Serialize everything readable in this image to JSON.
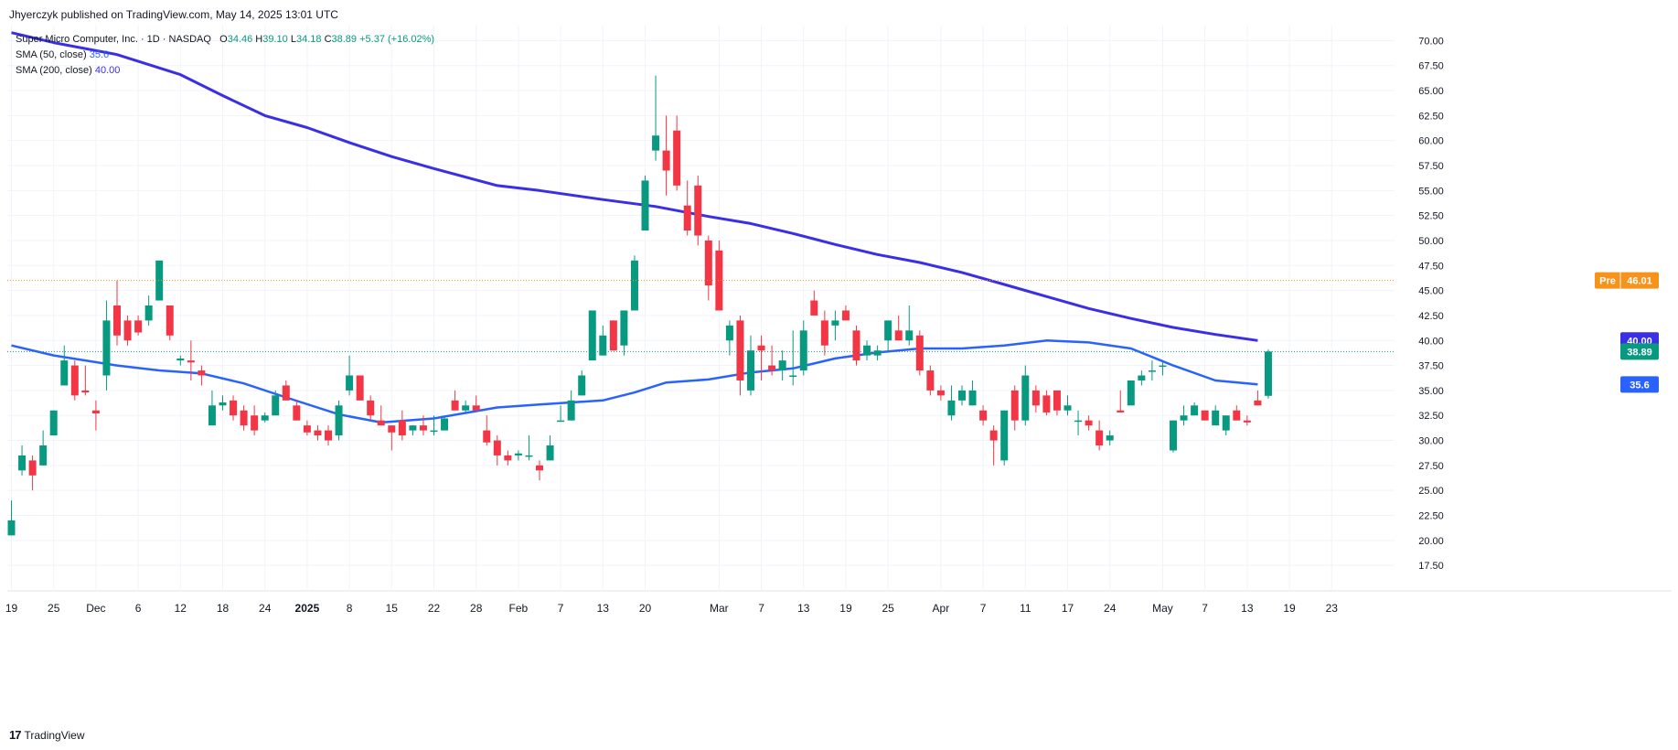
{
  "publisher_line": "Jhyerczyk published on TradingView.com, May 14, 2025 13:01 UTC",
  "legend": {
    "symbol": "Super Micro Computer, Inc. · 1D · NASDAQ",
    "o_label": "O",
    "o_value": "34.46",
    "h_label": "H",
    "h_value": "39.10",
    "l_label": "L",
    "l_value": "34.18",
    "c_label": "C",
    "c_value": "38.89",
    "change": "+5.37 (+16.02%)",
    "sma50_label": "SMA (50, close)",
    "sma50_value": "35.6",
    "sma200_label": "SMA (200, close)",
    "sma200_value": "40.00"
  },
  "branding": {
    "mark": "17",
    "name": "TradingView"
  },
  "colors": {
    "up": "#089981",
    "down": "#f23645",
    "sma50": "#2962ff",
    "sma200": "#3a2ee6",
    "pre": "#f7931a",
    "grid": "#f0f3fa"
  },
  "chart_data": {
    "type": "candlestick",
    "y_axis": {
      "min": 15.5,
      "max": 71.5,
      "side": "right",
      "ticks": [
        "17.50",
        "20.00",
        "22.50",
        "25.00",
        "27.50",
        "30.00",
        "32.50",
        "35.00",
        "37.50",
        "40.00",
        "42.50",
        "45.00",
        "47.50",
        "50.00",
        "52.50",
        "55.00",
        "57.50",
        "60.00",
        "62.50",
        "65.00",
        "67.50",
        "70.00"
      ]
    },
    "x_axis": {
      "ticks": [
        {
          "label": "19",
          "i": 0
        },
        {
          "label": "25",
          "i": 4
        },
        {
          "label": "Dec",
          "i": 8
        },
        {
          "label": "6",
          "i": 12
        },
        {
          "label": "12",
          "i": 16
        },
        {
          "label": "18",
          "i": 20
        },
        {
          "label": "24",
          "i": 24
        },
        {
          "label": "2025",
          "i": 28
        },
        {
          "label": "8",
          "i": 32
        },
        {
          "label": "15",
          "i": 36
        },
        {
          "label": "22",
          "i": 40
        },
        {
          "label": "28",
          "i": 44
        },
        {
          "label": "Feb",
          "i": 48
        },
        {
          "label": "7",
          "i": 52
        },
        {
          "label": "13",
          "i": 56
        },
        {
          "label": "20",
          "i": 60
        },
        {
          "label": "Mar",
          "i": 67
        },
        {
          "label": "7",
          "i": 71
        },
        {
          "label": "13",
          "i": 75
        },
        {
          "label": "19",
          "i": 79
        },
        {
          "label": "25",
          "i": 83
        },
        {
          "label": "Apr",
          "i": 88
        },
        {
          "label": "7",
          "i": 92
        },
        {
          "label": "11",
          "i": 96
        },
        {
          "label": "17",
          "i": 100
        },
        {
          "label": "24",
          "i": 104
        },
        {
          "label": "May",
          "i": 109
        },
        {
          "label": "7",
          "i": 113
        },
        {
          "label": "13",
          "i": 117
        },
        {
          "label": "19",
          "i": 121
        },
        {
          "label": "23",
          "i": 125
        }
      ]
    },
    "candles": [
      [
        20.5,
        24.0,
        20.5,
        22.0
      ],
      [
        27.0,
        29.5,
        26.5,
        28.5
      ],
      [
        28.0,
        28.5,
        25.0,
        26.5
      ],
      [
        27.5,
        31.0,
        27.5,
        29.5
      ],
      [
        30.5,
        33.0,
        30.5,
        33.0
      ],
      [
        35.5,
        39.5,
        35.5,
        38.0
      ],
      [
        37.5,
        38.0,
        34.0,
        34.5
      ],
      [
        35.0,
        37.5,
        34.5,
        34.8
      ],
      [
        33.0,
        34.0,
        31.0,
        32.7
      ],
      [
        36.5,
        44.0,
        35.0,
        42.0
      ],
      [
        43.5,
        46.0,
        39.5,
        40.5
      ],
      [
        42.0,
        42.5,
        39.5,
        40.0
      ],
      [
        42.0,
        42.5,
        40.5,
        40.8
      ],
      [
        42.0,
        44.5,
        41.5,
        43.5
      ],
      [
        44.0,
        48.0,
        44.0,
        48.0
      ],
      [
        43.5,
        43.5,
        40.0,
        40.5
      ],
      [
        38.0,
        38.5,
        37.5,
        38.2
      ],
      [
        38.0,
        40.0,
        36.0,
        37.8
      ],
      [
        37.0,
        37.5,
        35.5,
        36.5
      ],
      [
        31.5,
        35.0,
        31.5,
        33.5
      ],
      [
        33.5,
        34.5,
        33.0,
        33.8
      ],
      [
        34.0,
        34.5,
        32.0,
        32.5
      ],
      [
        33.0,
        33.5,
        31.0,
        31.5
      ],
      [
        32.5,
        33.5,
        30.5,
        31.0
      ],
      [
        32.0,
        32.8,
        31.8,
        32.5
      ],
      [
        32.5,
        35.0,
        32.5,
        34.5
      ],
      [
        35.5,
        36.0,
        34.0,
        34.0
      ],
      [
        33.5,
        34.0,
        32.0,
        32.0
      ],
      [
        31.5,
        32.0,
        30.5,
        30.8
      ],
      [
        31.0,
        31.5,
        30.0,
        30.5
      ],
      [
        31.0,
        31.5,
        29.5,
        30.0
      ],
      [
        30.5,
        34.0,
        30.0,
        33.5
      ],
      [
        35.0,
        38.5,
        34.5,
        36.5
      ],
      [
        36.5,
        36.5,
        34.0,
        34.0
      ],
      [
        34.0,
        34.5,
        32.0,
        32.5
      ],
      [
        32.0,
        33.5,
        31.5,
        31.5
      ],
      [
        31.5,
        31.5,
        29.0,
        30.8
      ],
      [
        32.0,
        33.0,
        30.0,
        30.5
      ],
      [
        31.0,
        31.5,
        30.5,
        31.5
      ],
      [
        31.5,
        32.5,
        30.5,
        31.0
      ],
      [
        31.0,
        32.5,
        30.5,
        31.0
      ],
      [
        31.0,
        32.5,
        31.0,
        32.2
      ],
      [
        34.0,
        35.0,
        33.0,
        33.0
      ],
      [
        33.0,
        34.0,
        32.8,
        33.5
      ],
      [
        33.5,
        34.5,
        33.5,
        33.0
      ],
      [
        31.0,
        32.5,
        29.5,
        29.8
      ],
      [
        30.0,
        30.5,
        27.5,
        28.5
      ],
      [
        28.5,
        29.0,
        27.5,
        28.0
      ],
      [
        28.5,
        29.0,
        28.0,
        28.7
      ],
      [
        28.5,
        30.5,
        28.0,
        28.5
      ],
      [
        27.5,
        28.0,
        26.0,
        27.0
      ],
      [
        28.0,
        30.5,
        28.0,
        29.5
      ],
      [
        32.0,
        33.5,
        32.0,
        32.0
      ],
      [
        32.0,
        35.0,
        32.0,
        34.0
      ],
      [
        34.5,
        37.0,
        34.5,
        36.5
      ],
      [
        38.0,
        43.0,
        38.0,
        43.0
      ],
      [
        38.5,
        41.5,
        38.5,
        40.5
      ],
      [
        42.0,
        42.0,
        39.0,
        39.0
      ],
      [
        39.5,
        43.0,
        38.5,
        43.0
      ],
      [
        43.0,
        48.5,
        43.0,
        48.0
      ],
      [
        51.0,
        56.5,
        51.0,
        56.0
      ],
      [
        59.0,
        66.5,
        58.0,
        60.5
      ],
      [
        59.0,
        62.5,
        54.5,
        57.0
      ],
      [
        61.0,
        62.5,
        55.0,
        55.5
      ],
      [
        53.5,
        56.0,
        50.5,
        51.0
      ],
      [
        55.5,
        56.5,
        49.5,
        50.5
      ],
      [
        50.0,
        50.5,
        44.0,
        45.5
      ],
      [
        49.0,
        50.0,
        43.0,
        43.0
      ],
      [
        40.0,
        42.0,
        38.5,
        41.5
      ],
      [
        42.0,
        42.5,
        34.5,
        36.0
      ],
      [
        35.0,
        40.5,
        34.5,
        39.0
      ],
      [
        39.5,
        40.5,
        36.0,
        39.0
      ],
      [
        37.5,
        39.5,
        36.5,
        37.0
      ],
      [
        37.0,
        39.0,
        36.0,
        38.0
      ],
      [
        36.5,
        41.0,
        35.5,
        36.5
      ],
      [
        37.0,
        42.0,
        36.5,
        41.0
      ],
      [
        44.0,
        45.0,
        42.5,
        42.5
      ],
      [
        42.0,
        43.0,
        38.5,
        39.5
      ],
      [
        41.5,
        43.0,
        40.0,
        42.0
      ],
      [
        43.0,
        43.5,
        42.0,
        42.0
      ],
      [
        41.0,
        41.5,
        37.5,
        38.0
      ],
      [
        38.5,
        40.0,
        38.0,
        39.5
      ],
      [
        38.5,
        39.5,
        38.0,
        39.0
      ],
      [
        40.0,
        42.0,
        39.0,
        42.0
      ],
      [
        41.0,
        42.5,
        40.0,
        40.0
      ],
      [
        40.0,
        43.5,
        39.5,
        41.0
      ],
      [
        40.5,
        41.0,
        36.5,
        37.0
      ],
      [
        37.0,
        37.5,
        34.5,
        35.0
      ],
      [
        35.0,
        35.5,
        34.0,
        34.5
      ],
      [
        32.5,
        35.5,
        32.0,
        34.0
      ],
      [
        34.0,
        35.5,
        33.5,
        35.0
      ],
      [
        33.5,
        36.0,
        33.5,
        35.0
      ],
      [
        33.0,
        33.5,
        31.5,
        32.0
      ],
      [
        31.0,
        31.5,
        27.5,
        30.0
      ],
      [
        28.0,
        33.0,
        27.5,
        33.0
      ],
      [
        35.0,
        35.5,
        31.0,
        32.0
      ],
      [
        32.0,
        37.5,
        31.5,
        36.5
      ],
      [
        35.0,
        35.5,
        32.8,
        33.5
      ],
      [
        34.5,
        35.0,
        32.5,
        32.8
      ],
      [
        35.0,
        35.0,
        32.5,
        33.0
      ],
      [
        33.0,
        34.5,
        32.5,
        33.5
      ],
      [
        32.0,
        33.0,
        30.5,
        32.0
      ],
      [
        32.0,
        32.5,
        31.0,
        31.5
      ],
      [
        31.0,
        32.0,
        29.0,
        29.5
      ],
      [
        30.0,
        31.0,
        29.5,
        30.5
      ],
      [
        33.0,
        35.0,
        32.8,
        32.8
      ],
      [
        33.5,
        36.0,
        33.5,
        36.0
      ],
      [
        36.0,
        37.0,
        35.5,
        36.5
      ],
      [
        37.0,
        38.0,
        36.0,
        37.0
      ],
      [
        37.5,
        37.8,
        36.5,
        37.5
      ],
      [
        29.0,
        32.0,
        28.8,
        32.0
      ],
      [
        32.0,
        33.5,
        31.5,
        32.5
      ],
      [
        32.5,
        33.8,
        32.5,
        33.5
      ],
      [
        33.0,
        33.0,
        32.0,
        32.0
      ],
      [
        31.5,
        33.5,
        31.5,
        33.0
      ],
      [
        31.0,
        32.5,
        30.5,
        32.5
      ],
      [
        33.0,
        33.5,
        32.5,
        32.0
      ],
      [
        32.0,
        32.5,
        31.5,
        31.8
      ],
      [
        34.0,
        35.0,
        33.5,
        33.5
      ],
      [
        34.46,
        39.1,
        34.18,
        38.89
      ]
    ],
    "sma50": [
      [
        0,
        39.5
      ],
      [
        4,
        38.5
      ],
      [
        10,
        37.5
      ],
      [
        14,
        37.0
      ],
      [
        18,
        36.7
      ],
      [
        22,
        35.7
      ],
      [
        26,
        34.3
      ],
      [
        31,
        32.6
      ],
      [
        35,
        31.8
      ],
      [
        40,
        32.2
      ],
      [
        46,
        33.3
      ],
      [
        50,
        33.6
      ],
      [
        56,
        34.0
      ],
      [
        59,
        34.8
      ],
      [
        62,
        35.8
      ],
      [
        66,
        36.1
      ],
      [
        70,
        36.8
      ],
      [
        74,
        37.2
      ],
      [
        78,
        38.2
      ],
      [
        82,
        38.8
      ],
      [
        86,
        39.2
      ],
      [
        90,
        39.2
      ],
      [
        94,
        39.5
      ],
      [
        98,
        40.0
      ],
      [
        102,
        39.8
      ],
      [
        106,
        39.2
      ],
      [
        110,
        37.5
      ],
      [
        114,
        36.0
      ],
      [
        118,
        35.6
      ]
    ],
    "sma200": [
      [
        0,
        70.8
      ],
      [
        4,
        69.8
      ],
      [
        10,
        68.6
      ],
      [
        16,
        66.6
      ],
      [
        20,
        64.5
      ],
      [
        24,
        62.5
      ],
      [
        28,
        61.3
      ],
      [
        32,
        59.8
      ],
      [
        36,
        58.4
      ],
      [
        40,
        57.2
      ],
      [
        46,
        55.5
      ],
      [
        50,
        55.0
      ],
      [
        56,
        54.1
      ],
      [
        61,
        53.4
      ],
      [
        66,
        52.4
      ],
      [
        70,
        51.7
      ],
      [
        74,
        50.7
      ],
      [
        78,
        49.6
      ],
      [
        82,
        48.6
      ],
      [
        86,
        47.8
      ],
      [
        90,
        46.8
      ],
      [
        94,
        45.6
      ],
      [
        98,
        44.4
      ],
      [
        102,
        43.2
      ],
      [
        106,
        42.2
      ],
      [
        110,
        41.3
      ],
      [
        114,
        40.6
      ],
      [
        118,
        40.0
      ]
    ],
    "price_lines": [
      {
        "name": "pre-market",
        "value": 46.01,
        "label": "Pre",
        "value_label": "46.01"
      },
      {
        "name": "last-close",
        "value": 38.89,
        "value_label": "38.89"
      }
    ],
    "axis_tags": [
      {
        "name": "sma200-tag",
        "value": 40.0,
        "label": "40.00"
      },
      {
        "name": "close-tag",
        "value": 38.89,
        "label": "38.89"
      },
      {
        "name": "sma50-tag",
        "value": 35.6,
        "label": "35.6"
      }
    ],
    "grid": true
  }
}
